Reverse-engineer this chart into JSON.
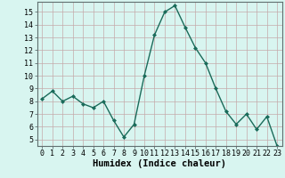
{
  "x": [
    0,
    1,
    2,
    3,
    4,
    5,
    6,
    7,
    8,
    9,
    10,
    11,
    12,
    13,
    14,
    15,
    16,
    17,
    18,
    19,
    20,
    21,
    22,
    23
  ],
  "y": [
    8.2,
    8.8,
    8.0,
    8.4,
    7.8,
    7.5,
    8.0,
    6.5,
    5.2,
    6.2,
    10.0,
    13.2,
    15.0,
    15.5,
    13.8,
    12.2,
    11.0,
    9.0,
    7.2,
    6.2,
    7.0,
    5.8,
    6.8,
    4.5
  ],
  "line_color": "#1a6b5a",
  "marker": "D",
  "marker_size": 2,
  "bg_color": "#d8f5f0",
  "grid_color": "#c4aaaa",
  "xlabel": "Humidex (Indice chaleur)",
  "xlim": [
    -0.5,
    23.5
  ],
  "ylim": [
    4.5,
    15.8
  ],
  "yticks": [
    5,
    6,
    7,
    8,
    9,
    10,
    11,
    12,
    13,
    14,
    15
  ],
  "xticks": [
    0,
    1,
    2,
    3,
    4,
    5,
    6,
    7,
    8,
    9,
    10,
    11,
    12,
    13,
    14,
    15,
    16,
    17,
    18,
    19,
    20,
    21,
    22,
    23
  ],
  "tick_label_fontsize": 6,
  "xlabel_fontsize": 7.5,
  "line_width": 1.0
}
